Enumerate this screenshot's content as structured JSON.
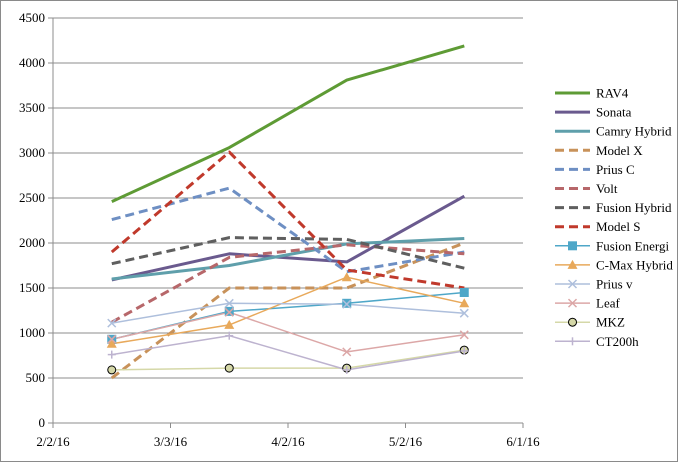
{
  "chart_data": {
    "type": "line",
    "title": "",
    "xlabel": "",
    "ylabel": "",
    "x_ticks": [
      "2/2/16",
      "3/3/16",
      "4/2/16",
      "5/2/16",
      "6/1/16"
    ],
    "xlim": [
      "2016-02-02",
      "2016-06-01"
    ],
    "x": [
      "2016-02-17",
      "2016-03-18",
      "2016-04-17",
      "2016-05-17"
    ],
    "ylim": [
      0,
      4500
    ],
    "y_ticks": [
      0,
      500,
      1000,
      1500,
      2000,
      2500,
      3000,
      3500,
      4000,
      4500
    ],
    "grid": "horizontal",
    "legend_position": "right",
    "series": [
      {
        "name": "RAV4",
        "color": "#5e9b35",
        "style": "solid",
        "width": 3,
        "marker": "none",
        "values": [
          2460,
          3060,
          3810,
          4190
        ]
      },
      {
        "name": "Sonata",
        "color": "#6a5a8e",
        "style": "solid",
        "width": 3,
        "marker": "none",
        "values": [
          1590,
          1880,
          1790,
          2520
        ]
      },
      {
        "name": "Camry Hybrid",
        "color": "#5f9fab",
        "style": "solid",
        "width": 3,
        "marker": "none",
        "values": [
          1600,
          1750,
          1990,
          2050
        ]
      },
      {
        "name": "Model X",
        "color": "#c8925a",
        "style": "dash",
        "width": 3,
        "marker": "none",
        "values": [
          500,
          1500,
          1500,
          2000
        ]
      },
      {
        "name": "Prius C",
        "color": "#6e8fc3",
        "style": "dash",
        "width": 3,
        "marker": "none",
        "values": [
          2260,
          2610,
          1680,
          1900
        ]
      },
      {
        "name": "Volt",
        "color": "#b7676a",
        "style": "dash",
        "width": 3,
        "marker": "none",
        "values": [
          1120,
          1840,
          1980,
          1880
        ]
      },
      {
        "name": "Fusion Hybrid",
        "color": "#5f5f5f",
        "style": "dash",
        "width": 3,
        "marker": "none",
        "values": [
          1770,
          2060,
          2040,
          1720
        ]
      },
      {
        "name": "Model S",
        "color": "#c0392b",
        "style": "dash",
        "width": 3,
        "marker": "none",
        "values": [
          1900,
          3010,
          1700,
          1500
        ]
      },
      {
        "name": "Fusion Energi",
        "color": "#4fa7c8",
        "style": "solid",
        "width": 1.5,
        "marker": "square",
        "values": [
          930,
          1240,
          1330,
          1450
        ]
      },
      {
        "name": "C-Max Hybrid",
        "color": "#e8a95b",
        "style": "solid",
        "width": 1.5,
        "marker": "triangle",
        "values": [
          880,
          1090,
          1620,
          1330
        ]
      },
      {
        "name": "Prius v",
        "color": "#aebfdc",
        "style": "solid",
        "width": 1.5,
        "marker": "x",
        "values": [
          1110,
          1330,
          1320,
          1220
        ]
      },
      {
        "name": "Leaf",
        "color": "#dca7a7",
        "style": "solid",
        "width": 1.5,
        "marker": "x",
        "values": [
          930,
          1230,
          790,
          980
        ]
      },
      {
        "name": "MKZ",
        "color": "#d5d8a8",
        "style": "solid",
        "width": 1.5,
        "marker": "circle",
        "values": [
          590,
          610,
          610,
          810
        ]
      },
      {
        "name": "CT200h",
        "color": "#bdb3cf",
        "style": "solid",
        "width": 1.5,
        "marker": "plus",
        "values": [
          760,
          970,
          590,
          800
        ]
      }
    ]
  }
}
